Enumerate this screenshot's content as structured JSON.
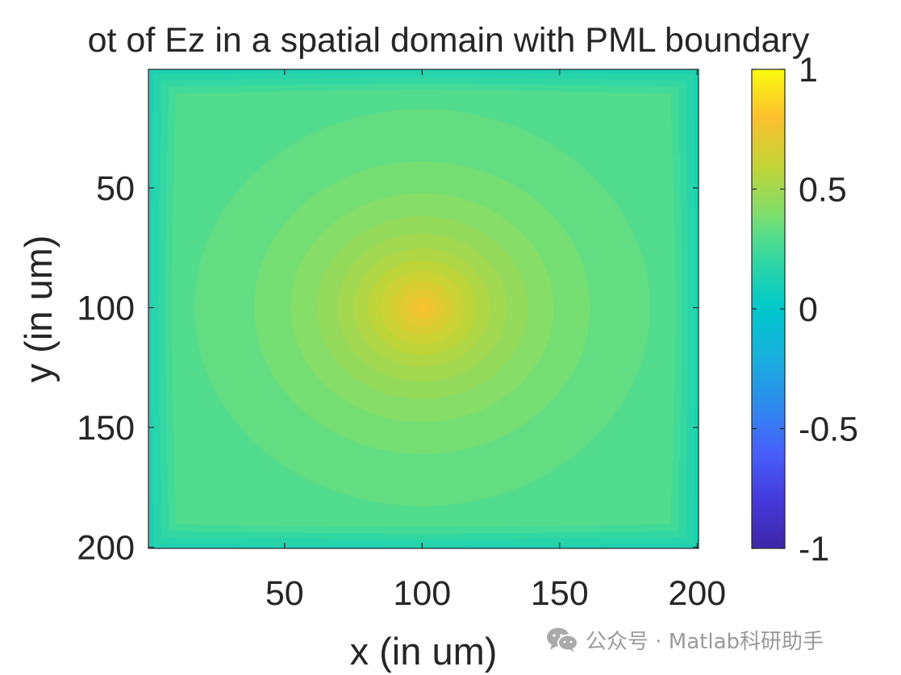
{
  "chart_data": {
    "type": "heatmap",
    "title": "ot of Ez in a spatial domain with PML boundary",
    "xlabel": "x (in um)",
    "ylabel": "y (in um)",
    "xlim": [
      1,
      200
    ],
    "ylim": [
      1,
      200
    ],
    "y_direction": "reverse",
    "xticks": [
      50,
      100,
      150,
      200
    ],
    "xtick_labels": [
      "50",
      "100",
      "150",
      "200"
    ],
    "yticks": [
      50,
      100,
      150,
      200
    ],
    "ytick_labels": [
      "50",
      "100",
      "150",
      "200"
    ],
    "colormap": "parula",
    "clim": [
      -1,
      1
    ],
    "colorbar": {
      "ticks": [
        1,
        0.5,
        0,
        -0.5,
        -1
      ],
      "tick_labels": [
        "1",
        "0.5",
        "0",
        "-0.5",
        "-1"
      ],
      "location": "right"
    },
    "field": {
      "source_x": 100,
      "source_y": 100,
      "peak_value": 0.75,
      "value_at_edges_inner": 0.25,
      "value_at_pml_boundary": 0.05,
      "pml_thickness": 10
    }
  },
  "watermark": {
    "icon": "wechat-icon",
    "text": "公众号 · Matlab科研助手"
  }
}
